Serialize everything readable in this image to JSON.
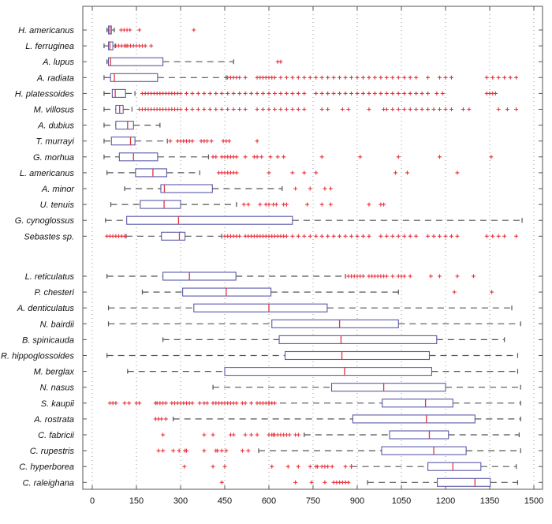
{
  "chart_data": {
    "type": "box",
    "orientation": "horizontal",
    "title": "",
    "xlabel": "",
    "ylabel": "",
    "xlim": [
      -30,
      1520
    ],
    "xticks": [
      0,
      150,
      300,
      450,
      600,
      750,
      900,
      1050,
      1200,
      1350,
      1500
    ],
    "grid": "vertical-dotted",
    "colors": {
      "box": "#5a5aa8",
      "median": "#e8323c",
      "whisker": "#555555",
      "outlier": "#e8323c",
      "axis": "#555555",
      "grid": "#9a9a9a"
    },
    "groups": [
      {
        "name": "upper",
        "series": [
          {
            "name": "H. americanus",
            "whisker_low": 50,
            "q1": 55,
            "median": 60,
            "q3": 65,
            "whisker_high": 75,
            "outliers": [
              98,
              108,
              118,
              128,
              160,
              345
            ]
          },
          {
            "name": "L. ferruginea",
            "whisker_low": 40,
            "q1": 55,
            "median": 60,
            "q3": 70,
            "whisker_high": 78,
            "outliers": [
              80,
              90,
              100,
              110,
              115,
              120,
              130,
              140,
              150,
              160,
              170,
              180,
              200
            ]
          },
          {
            "name": "A. lupus",
            "whisker_low": 50,
            "q1": 55,
            "median": 62,
            "q3": 240,
            "whisker_high": 480,
            "outliers": [
              630,
              640
            ]
          },
          {
            "name": "A. radiata",
            "whisker_low": 40,
            "q1": 62,
            "median": 75,
            "q3": 222,
            "whisker_high": 455,
            "outliers": [
              460,
              470,
              480,
              490,
              500,
              520,
              560,
              570,
              580,
              590,
              600,
              610,
              620,
              640,
              660,
              680,
              700,
              720,
              740,
              760,
              780,
              800,
              820,
              840,
              860,
              880,
              900,
              920,
              940,
              960,
              980,
              1000,
              1020,
              1040,
              1060,
              1080,
              1100,
              1140,
              1180,
              1200,
              1220,
              1340,
              1360,
              1380,
              1400,
              1420,
              1440
            ]
          },
          {
            "name": "H. platessoides",
            "whisker_low": 40,
            "q1": 68,
            "median": 78,
            "q3": 113,
            "whisker_high": 145,
            "outliers": [
              170,
              180,
              190,
              200,
              210,
              220,
              230,
              240,
              250,
              260,
              270,
              280,
              290,
              300,
              320,
              340,
              360,
              380,
              400,
              420,
              440,
              460,
              480,
              500,
              520,
              540,
              560,
              580,
              600,
              620,
              640,
              660,
              680,
              700,
              720,
              760,
              780,
              800,
              820,
              840,
              860,
              880,
              900,
              920,
              940,
              960,
              980,
              1000,
              1020,
              1040,
              1060,
              1080,
              1100,
              1120,
              1140,
              1170,
              1190,
              1340,
              1350,
              1360,
              1370
            ]
          },
          {
            "name": "M. villosus",
            "whisker_low": 40,
            "q1": 80,
            "median": 93,
            "q3": 105,
            "whisker_high": 135,
            "outliers": [
              160,
              170,
              180,
              190,
              200,
              210,
              220,
              230,
              240,
              250,
              260,
              270,
              280,
              290,
              300,
              320,
              340,
              360,
              380,
              400,
              420,
              440,
              460,
              480,
              500,
              520,
              560,
              580,
              600,
              620,
              640,
              660,
              680,
              700,
              720,
              780,
              800,
              850,
              870,
              940,
              990,
              1000,
              1020,
              1040,
              1060,
              1080,
              1100,
              1120,
              1140,
              1160,
              1180,
              1200,
              1220,
              1260,
              1280,
              1380,
              1410,
              1440
            ]
          },
          {
            "name": "A. dubius",
            "whisker_low": 40,
            "q1": 80,
            "median": 120,
            "q3": 140,
            "whisker_high": 230,
            "outliers": []
          },
          {
            "name": "T. murrayi",
            "whisker_low": 40,
            "q1": 65,
            "median": 130,
            "q3": 145,
            "whisker_high": 255,
            "outliers": [
              265,
              290,
              300,
              310,
              320,
              330,
              340,
              370,
              380,
              390,
              405,
              445,
              455,
              465,
              560
            ]
          },
          {
            "name": "G. morhua",
            "whisker_low": 40,
            "q1": 92,
            "median": 140,
            "q3": 222,
            "whisker_high": 395,
            "outliers": [
              410,
              420,
              440,
              450,
              460,
              470,
              480,
              490,
              520,
              550,
              560,
              575,
              605,
              630,
              650,
              780,
              910,
              1040,
              1180,
              1355
            ]
          },
          {
            "name": "L. americanus",
            "whisker_low": 50,
            "q1": 147,
            "median": 206,
            "q3": 253,
            "whisker_high": 365,
            "outliers": [
              430,
              440,
              450,
              460,
              470,
              480,
              490,
              600,
              680,
              720,
              760,
              1030,
              1070,
              1240
            ]
          },
          {
            "name": "A. minor",
            "whisker_low": 110,
            "q1": 233,
            "median": 245,
            "q3": 408,
            "whisker_high": 645,
            "outliers": [
              690,
              740,
              790,
              810
            ]
          },
          {
            "name": "U. tenuis",
            "whisker_low": 63,
            "q1": 163,
            "median": 244,
            "q3": 300,
            "whisker_high": 490,
            "outliers": [
              515,
              530,
              570,
              590,
              600,
              615,
              625,
              650,
              660,
              730,
              780,
              810,
              940,
              980,
              990
            ]
          },
          {
            "name": "G. cynoglossus",
            "whisker_low": 45,
            "q1": 117,
            "median": 293,
            "q3": 680,
            "whisker_high": 1460,
            "outliers": []
          },
          {
            "name": "Sebastes sp.",
            "whisker_low": 115,
            "q1": 235,
            "median": 296,
            "q3": 315,
            "whisker_high": 440,
            "outliers": [
              50,
              60,
              70,
              80,
              90,
              100,
              110,
              450,
              460,
              470,
              480,
              490,
              500,
              520,
              530,
              540,
              550,
              560,
              570,
              580,
              590,
              600,
              610,
              620,
              630,
              640,
              650,
              660,
              680,
              700,
              720,
              740,
              760,
              780,
              800,
              820,
              840,
              860,
              880,
              900,
              920,
              940,
              980,
              1000,
              1020,
              1040,
              1060,
              1080,
              1100,
              1140,
              1160,
              1180,
              1200,
              1220,
              1240,
              1340,
              1360,
              1380,
              1400,
              1440
            ]
          }
        ]
      },
      {
        "name": "lower",
        "series": [
          {
            "name": "L. reticulatus",
            "whisker_low": 50,
            "q1": 240,
            "median": 330,
            "q3": 488,
            "whisker_high": 860,
            "outliers": [
              870,
              880,
              890,
              900,
              910,
              920,
              940,
              950,
              960,
              970,
              980,
              990,
              1000,
              1020,
              1040,
              1050,
              1060,
              1080,
              1150,
              1180,
              1240,
              1295
            ]
          },
          {
            "name": "P. chesteri",
            "whisker_low": 170,
            "q1": 307,
            "median": 455,
            "q3": 607,
            "whisker_high": 1040,
            "outliers": [
              1230,
              1357
            ]
          },
          {
            "name": "A. denticulatus",
            "whisker_low": 55,
            "q1": 345,
            "median": 600,
            "q3": 798,
            "whisker_high": 1425,
            "outliers": []
          },
          {
            "name": "N. bairdii",
            "whisker_low": 55,
            "q1": 610,
            "median": 840,
            "q3": 1040,
            "whisker_high": 1455,
            "outliers": []
          },
          {
            "name": "B. spinicauda",
            "whisker_low": 240,
            "q1": 635,
            "median": 845,
            "q3": 1170,
            "whisker_high": 1400,
            "outliers": []
          },
          {
            "name": "R. hippoglossoides",
            "whisker_low": 50,
            "q1": 655,
            "median": 848,
            "q3": 1145,
            "whisker_high": 1445,
            "outliers": []
          },
          {
            "name": "M. berglax",
            "whisker_low": 120,
            "q1": 450,
            "median": 857,
            "q3": 1153,
            "whisker_high": 1445,
            "outliers": []
          },
          {
            "name": "N. nasus",
            "whisker_low": 410,
            "q1": 813,
            "median": 990,
            "q3": 1200,
            "whisker_high": 1455,
            "outliers": []
          },
          {
            "name": "S. kaupii",
            "whisker_low": 600,
            "q1": 985,
            "median": 1132,
            "q3": 1225,
            "whisker_high": 1455,
            "outliers": [
              60,
              70,
              80,
              110,
              125,
              150,
              160,
              215,
              220,
              230,
              240,
              250,
              270,
              280,
              290,
              300,
              310,
              320,
              330,
              340,
              365,
              380,
              390,
              410,
              420,
              430,
              440,
              450,
              460,
              470,
              480,
              490,
              510,
              520,
              540,
              560,
              570,
              580,
              590,
              600,
              610,
              620
            ]
          },
          {
            "name": "A. rostrata",
            "whisker_low": 275,
            "q1": 885,
            "median": 1135,
            "q3": 1300,
            "whisker_high": 1455,
            "outliers": [
              215,
              225,
              235,
              250
            ]
          },
          {
            "name": "C. fabricii",
            "whisker_low": 720,
            "q1": 1010,
            "median": 1145,
            "q3": 1210,
            "whisker_high": 1450,
            "outliers": [
              240,
              380,
              410,
              470,
              480,
              520,
              540,
              560,
              600,
              610,
              615,
              620,
              630,
              640,
              650,
              660,
              670,
              690,
              700
            ]
          },
          {
            "name": "C. rupestris",
            "whisker_low": 565,
            "q1": 983,
            "median": 1160,
            "q3": 1270,
            "whisker_high": 1455,
            "outliers": [
              225,
              240,
              275,
              295,
              315,
              320,
              380,
              420,
              425,
              440,
              455,
              510,
              530
            ]
          },
          {
            "name": "C. hyperborea",
            "whisker_low": 880,
            "q1": 1140,
            "median": 1225,
            "q3": 1320,
            "whisker_high": 1440,
            "outliers": [
              313,
              410,
              450,
              610,
              665,
              700,
              740,
              760,
              765,
              780,
              790,
              800,
              815,
              860,
              880
            ]
          },
          {
            "name": "C. raleighana",
            "whisker_low": 935,
            "q1": 1172,
            "median": 1300,
            "q3": 1352,
            "whisker_high": 1445,
            "outliers": [
              440,
              690,
              745,
              790,
              820,
              830,
              840,
              850,
              860,
              870
            ]
          }
        ]
      }
    ]
  }
}
